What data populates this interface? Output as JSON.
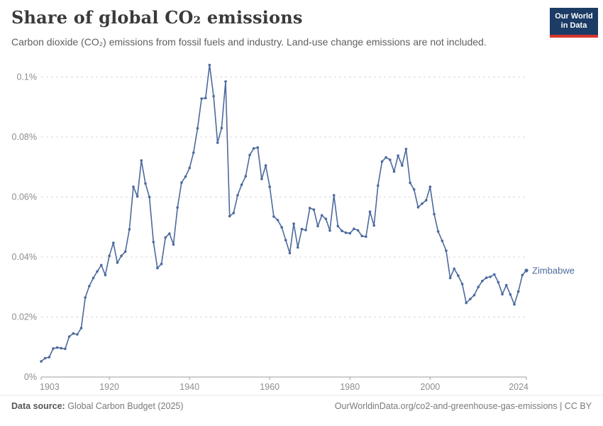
{
  "header": {
    "title": "Share of global CO₂ emissions",
    "subtitle": "Carbon dioxide (CO₂) emissions from fossil fuels and industry. Land-use change emissions are not included.",
    "logo": {
      "line1": "Our World",
      "line2": "in Data",
      "bg_color": "#1b3c64",
      "accent_color": "#d8352c"
    }
  },
  "footer": {
    "source_label": "Data source:",
    "source_value": "Global Carbon Budget (2025)",
    "attribution": "OurWorldinData.org/co2-and-greenhouse-gas-emissions | CC BY"
  },
  "chart_data": {
    "type": "line",
    "title": "Share of global CO₂ emissions",
    "entity": "Zimbabwe",
    "unit": "%",
    "xlabel": "",
    "ylabel": "",
    "x_domain": [
      1903,
      2024
    ],
    "y_domain": [
      0,
      0.1
    ],
    "grid": true,
    "legend": "end-of-line-label",
    "x_ticks": [
      1903,
      1920,
      1940,
      1960,
      1980,
      2000,
      2024
    ],
    "y_ticks": [
      {
        "value": 0,
        "label": "0%"
      },
      {
        "value": 0.02,
        "label": "0.02%"
      },
      {
        "value": 0.04,
        "label": "0.04%"
      },
      {
        "value": 0.06,
        "label": "0.06%"
      },
      {
        "value": 0.08,
        "label": "0.08%"
      },
      {
        "value": 0.1,
        "label": "0.1%"
      }
    ],
    "colors": {
      "line": "#4c6a9d",
      "grid": "#d9d9d9",
      "axis": "#9e9e9e",
      "tick_label": "#8e8e8e"
    },
    "x": [
      1903,
      1904,
      1905,
      1906,
      1907,
      1908,
      1909,
      1910,
      1911,
      1912,
      1913,
      1914,
      1915,
      1916,
      1917,
      1918,
      1919,
      1920,
      1921,
      1922,
      1923,
      1924,
      1925,
      1926,
      1927,
      1928,
      1929,
      1930,
      1931,
      1932,
      1933,
      1934,
      1935,
      1936,
      1937,
      1938,
      1939,
      1940,
      1941,
      1942,
      1943,
      1944,
      1945,
      1946,
      1947,
      1948,
      1949,
      1950,
      1951,
      1952,
      1953,
      1954,
      1955,
      1956,
      1957,
      1958,
      1959,
      1960,
      1961,
      1962,
      1963,
      1964,
      1965,
      1966,
      1967,
      1968,
      1969,
      1970,
      1971,
      1972,
      1973,
      1974,
      1975,
      1976,
      1977,
      1978,
      1979,
      1980,
      1981,
      1982,
      1983,
      1984,
      1985,
      1986,
      1987,
      1988,
      1989,
      1990,
      1991,
      1992,
      1993,
      1994,
      1995,
      1996,
      1997,
      1998,
      1999,
      2000,
      2001,
      2002,
      2003,
      2004,
      2005,
      2006,
      2007,
      2008,
      2009,
      2010,
      2011,
      2012,
      2013,
      2014,
      2015,
      2016,
      2017,
      2018,
      2019,
      2020,
      2021,
      2022,
      2023,
      2024
    ],
    "values": [
      0.0052,
      0.0063,
      0.0066,
      0.0095,
      0.0098,
      0.0096,
      0.0094,
      0.0135,
      0.0145,
      0.0142,
      0.0163,
      0.0265,
      0.0303,
      0.033,
      0.0352,
      0.0373,
      0.034,
      0.0404,
      0.0447,
      0.0381,
      0.0404,
      0.0418,
      0.0492,
      0.0634,
      0.0602,
      0.0722,
      0.0645,
      0.06,
      0.045,
      0.0363,
      0.0377,
      0.0465,
      0.0478,
      0.0442,
      0.0565,
      0.0648,
      0.0668,
      0.0697,
      0.0748,
      0.0829,
      0.0928,
      0.093,
      0.104,
      0.0936,
      0.0781,
      0.083,
      0.0985,
      0.0536,
      0.0547,
      0.0606,
      0.0641,
      0.0669,
      0.074,
      0.0762,
      0.0765,
      0.066,
      0.0705,
      0.0634,
      0.0535,
      0.0523,
      0.0499,
      0.0456,
      0.0413,
      0.0511,
      0.0432,
      0.0493,
      0.049,
      0.0563,
      0.0558,
      0.0503,
      0.0539,
      0.0527,
      0.0488,
      0.0606,
      0.0503,
      0.0487,
      0.0481,
      0.0479,
      0.0494,
      0.0489,
      0.047,
      0.0468,
      0.0551,
      0.0505,
      0.0638,
      0.0718,
      0.0732,
      0.0724,
      0.0685,
      0.0738,
      0.0705,
      0.076,
      0.0647,
      0.0625,
      0.0566,
      0.0578,
      0.0589,
      0.0634,
      0.0543,
      0.0485,
      0.0454,
      0.0421,
      0.033,
      0.0361,
      0.0338,
      0.031,
      0.0247,
      0.026,
      0.0273,
      0.03,
      0.032,
      0.0331,
      0.0334,
      0.0342,
      0.0316,
      0.0276,
      0.0306,
      0.0275,
      0.0242,
      0.0285,
      0.034,
      0.0355
    ]
  }
}
